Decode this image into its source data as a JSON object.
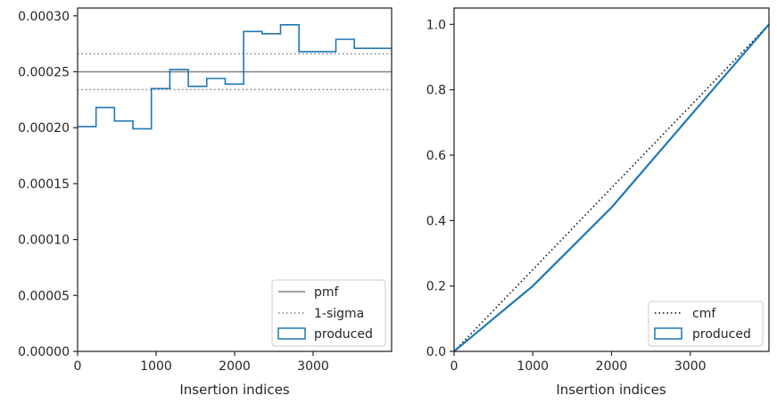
{
  "colors": {
    "produced": "#1f77b4",
    "pmf": "#808080",
    "sigma": "#808080",
    "cmf": "#000000",
    "axes": "#262626"
  },
  "chart_data": [
    {
      "type": "histogram",
      "xlabel": "Insertion indices",
      "ylabel": "",
      "xlim": [
        0,
        4000
      ],
      "ylim": [
        0,
        0.000307
      ],
      "x_ticks": [
        0,
        1000,
        2000,
        3000
      ],
      "x_tick_labels": [
        "0",
        "1000",
        "2000",
        "3000"
      ],
      "y_ticks": [
        0,
        5e-05,
        0.0001,
        0.00015,
        0.0002,
        0.00025,
        0.0003
      ],
      "y_tick_labels": [
        "0.00000",
        "0.00005",
        "0.00010",
        "0.00015",
        "0.00020",
        "0.00025",
        "0.00030"
      ],
      "grid": false,
      "legend_position": "lower-right",
      "bin_edges": [
        0,
        235,
        470,
        705,
        940,
        1175,
        1410,
        1645,
        1880,
        2115,
        2350,
        2585,
        2820,
        3055,
        3290,
        3525,
        3760,
        4000
      ],
      "series": [
        {
          "name": "pmf",
          "style": "solid",
          "y": 0.00025
        },
        {
          "name": "1-sigma",
          "style": "dotted",
          "y_values": [
            0.000234,
            0.000266
          ]
        },
        {
          "name": "produced",
          "style": "step",
          "values": [
            0.000201,
            0.000218,
            0.000206,
            0.000199,
            0.000235,
            0.000252,
            0.000237,
            0.000244,
            0.000239,
            0.000286,
            0.000284,
            0.000292,
            0.000268,
            0.000268,
            0.000279,
            0.000271,
            0.000271
          ]
        }
      ]
    },
    {
      "type": "line",
      "xlabel": "Insertion indices",
      "ylabel": "",
      "xlim": [
        0,
        4000
      ],
      "ylim": [
        0,
        1.05
      ],
      "x_ticks": [
        0,
        1000,
        2000,
        3000
      ],
      "x_tick_labels": [
        "0",
        "1000",
        "2000",
        "3000"
      ],
      "y_ticks": [
        0,
        0.2,
        0.4,
        0.6,
        0.8,
        1.0
      ],
      "y_tick_labels": [
        "0.0",
        "0.2",
        "0.4",
        "0.6",
        "0.8",
        "1.0"
      ],
      "grid": false,
      "legend_position": "lower-right",
      "series": [
        {
          "name": "cmf",
          "style": "dotted",
          "x": [
            0,
            4000
          ],
          "y": [
            0,
            1.0
          ]
        },
        {
          "name": "produced",
          "style": "solid",
          "x": [
            0,
            250,
            500,
            750,
            1000,
            1250,
            1500,
            1750,
            2000,
            2250,
            2500,
            2750,
            3000,
            3250,
            3500,
            3750,
            4000
          ],
          "y": [
            0,
            0.05,
            0.1,
            0.15,
            0.2,
            0.26,
            0.32,
            0.38,
            0.44,
            0.51,
            0.58,
            0.65,
            0.72,
            0.79,
            0.86,
            0.93,
            1.0
          ]
        }
      ]
    }
  ]
}
